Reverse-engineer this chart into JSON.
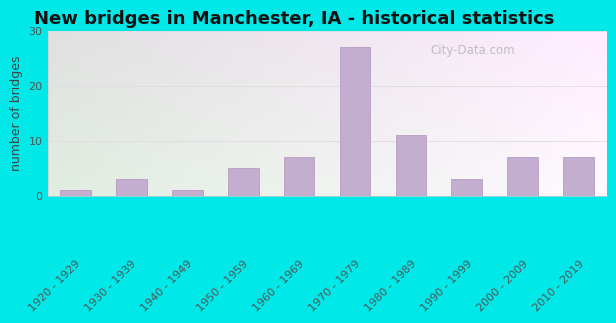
{
  "title": "New bridges in Manchester, IA - historical statistics",
  "categories": [
    "1920 - 1929",
    "1930 - 1939",
    "1940 - 1949",
    "1950 - 1959",
    "1960 - 1969",
    "1970 - 1979",
    "1980 - 1989",
    "1990 - 1999",
    "2000 - 2009",
    "2010 - 2019"
  ],
  "values": [
    1,
    3,
    1,
    5,
    7,
    27,
    11,
    3,
    7,
    7
  ],
  "bar_color": "#c4aed0",
  "bar_edge_color": "#b090be",
  "ylabel": "number of bridges",
  "ylim": [
    0,
    30
  ],
  "yticks": [
    0,
    10,
    20,
    30
  ],
  "background_outer": "#00e8e8",
  "title_fontsize": 13,
  "tick_fontsize": 8,
  "ylabel_fontsize": 9,
  "watermark": "City-Data.com",
  "grid_color": "#dddddd",
  "bg_left_color": "#c8e8c0",
  "bg_right_color": "#e8f0f8"
}
